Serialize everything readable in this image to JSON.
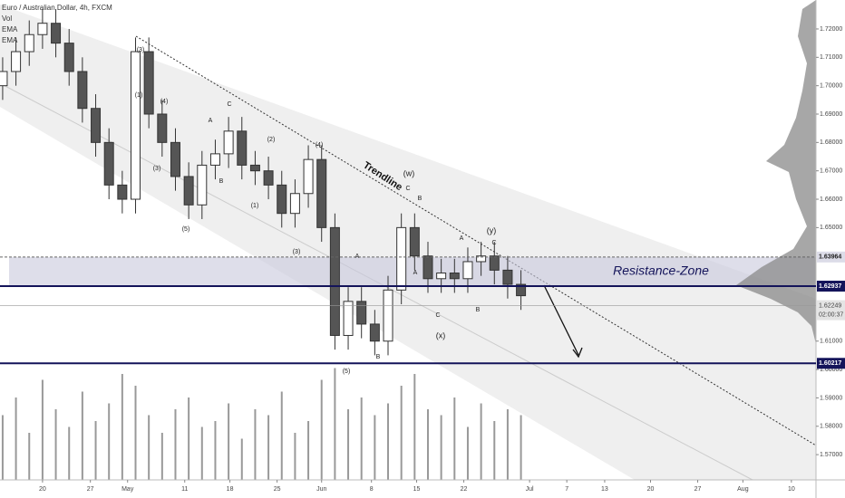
{
  "chart_data": {
    "type": "candlestick",
    "title": "Euro / Australian Dollar, 4h, FXCM",
    "indicators": [
      "Vol",
      "EMA",
      "EMA"
    ],
    "x": [
      -6,
      -4,
      -2,
      0,
      2,
      4,
      6,
      8,
      10,
      12,
      14,
      16,
      18,
      20,
      22,
      24,
      26,
      28,
      30,
      32,
      34,
      36,
      38,
      40,
      42,
      44,
      46,
      48,
      50,
      52,
      54,
      56,
      58,
      60,
      62,
      64,
      66,
      68,
      70,
      72
    ],
    "open": [
      1.7,
      1.705,
      1.712,
      1.718,
      1.722,
      1.715,
      1.705,
      1.692,
      1.68,
      1.665,
      1.66,
      1.712,
      1.69,
      1.68,
      1.668,
      1.658,
      1.672,
      1.676,
      1.684,
      1.672,
      1.67,
      1.665,
      1.655,
      1.662,
      1.674,
      1.65,
      1.612,
      1.624,
      1.616,
      1.61,
      1.628,
      1.65,
      1.64,
      1.632,
      1.634,
      1.632,
      1.638,
      1.64,
      1.635,
      1.63
    ],
    "high": [
      1.71,
      1.717,
      1.723,
      1.727,
      1.727,
      1.72,
      1.71,
      1.697,
      1.685,
      1.67,
      1.717,
      1.717,
      1.695,
      1.685,
      1.673,
      1.677,
      1.681,
      1.689,
      1.689,
      1.677,
      1.675,
      1.67,
      1.667,
      1.679,
      1.679,
      1.655,
      1.629,
      1.629,
      1.621,
      1.633,
      1.655,
      1.655,
      1.645,
      1.639,
      1.639,
      1.643,
      1.645,
      1.645,
      1.64,
      1.635
    ],
    "low": [
      1.695,
      1.7,
      1.707,
      1.713,
      1.71,
      1.7,
      1.687,
      1.675,
      1.66,
      1.655,
      1.655,
      1.685,
      1.675,
      1.663,
      1.653,
      1.653,
      1.667,
      1.671,
      1.667,
      1.665,
      1.66,
      1.65,
      1.65,
      1.657,
      1.645,
      1.607,
      1.607,
      1.611,
      1.605,
      1.605,
      1.623,
      1.635,
      1.627,
      1.627,
      1.627,
      1.627,
      1.633,
      1.63,
      1.625,
      1.621
    ],
    "close": [
      1.705,
      1.712,
      1.718,
      1.722,
      1.715,
      1.705,
      1.692,
      1.68,
      1.665,
      1.66,
      1.712,
      1.69,
      1.68,
      1.668,
      1.658,
      1.672,
      1.676,
      1.684,
      1.672,
      1.67,
      1.665,
      1.655,
      1.662,
      1.674,
      1.65,
      1.612,
      1.624,
      1.616,
      1.61,
      1.628,
      1.65,
      1.64,
      1.632,
      1.634,
      1.632,
      1.638,
      1.64,
      1.635,
      1.63,
      1.626
    ],
    "volume": [
      55,
      70,
      40,
      85,
      60,
      45,
      75,
      50,
      65,
      90,
      80,
      55,
      40,
      60,
      70,
      45,
      50,
      65,
      35,
      60,
      55,
      75,
      40,
      50,
      85,
      95,
      60,
      70,
      55,
      65,
      80,
      90,
      60,
      55,
      70,
      45,
      65,
      50,
      60,
      55
    ],
    "vlim": [
      0,
      100
    ],
    "up_color": "#ffffff",
    "down_color": "#555555",
    "xlim": [
      -6.4,
      116.4
    ],
    "xticks": [
      {
        "value": 0,
        "label": "20"
      },
      {
        "value": 7.2,
        "label": "27"
      },
      {
        "value": 12.8,
        "label": "May"
      },
      {
        "value": 21.4,
        "label": "11"
      },
      {
        "value": 28.2,
        "label": "18"
      },
      {
        "value": 35.3,
        "label": "25"
      },
      {
        "value": 42,
        "label": "Jun"
      },
      {
        "value": 49.5,
        "label": "8"
      },
      {
        "value": 56.3,
        "label": "15"
      },
      {
        "value": 63.4,
        "label": "22"
      },
      {
        "value": 73.3,
        "label": "Jul"
      },
      {
        "value": 78.9,
        "label": "7"
      },
      {
        "value": 84.6,
        "label": "13"
      },
      {
        "value": 91.5,
        "label": "20"
      },
      {
        "value": 98.6,
        "label": "27"
      },
      {
        "value": 105.4,
        "label": "Aug"
      },
      {
        "value": 112.7,
        "label": "10"
      }
    ],
    "ylim": [
      1.5611,
      1.7302
    ],
    "yticks": [
      {
        "value": 1.72,
        "label": "1.72000"
      },
      {
        "value": 1.71,
        "label": "1.71000"
      },
      {
        "value": 1.7,
        "label": "1.70000"
      },
      {
        "value": 1.69,
        "label": "1.69000"
      },
      {
        "value": 1.68,
        "label": "1.68000"
      },
      {
        "value": 1.67,
        "label": "1.67000"
      },
      {
        "value": 1.66,
        "label": "1.66000"
      },
      {
        "value": 1.65,
        "label": "1.65000"
      },
      {
        "value": 1.61,
        "label": "1.61000"
      },
      {
        "value": 1.6,
        "label": "1.60000"
      },
      {
        "value": 1.59,
        "label": "1.59000"
      },
      {
        "value": 1.58,
        "label": "1.58000"
      },
      {
        "value": 1.57,
        "label": "1.57000"
      }
    ],
    "levels": [
      {
        "value": 1.63964,
        "style": "dashed",
        "color": "#666666",
        "box": "#dcdce8"
      },
      {
        "value": 1.62937,
        "style": "solid",
        "color": "#14145a",
        "box": "#14145a"
      },
      {
        "value": 1.60217,
        "style": "solid",
        "color": "#14145a",
        "box": "#14145a"
      }
    ],
    "current_price": {
      "value": 1.62249,
      "countdown": "02:00:37"
    },
    "zone": {
      "label": "Resistance-Zone",
      "from": 1.6296,
      "to": 1.6396,
      "color": "#c8c8dc"
    },
    "trendline_label": "Trendline",
    "waves": [
      "(3)",
      "(1)",
      "(4)",
      "A",
      "C",
      "(2)",
      "(4)",
      "(3)",
      "B",
      "(1)",
      "(5)",
      "(3)",
      "(w)",
      "C",
      "B",
      "(y)",
      "A",
      "C",
      "A",
      "C",
      "B",
      "(x)",
      "B",
      "(5)",
      "A"
    ]
  }
}
